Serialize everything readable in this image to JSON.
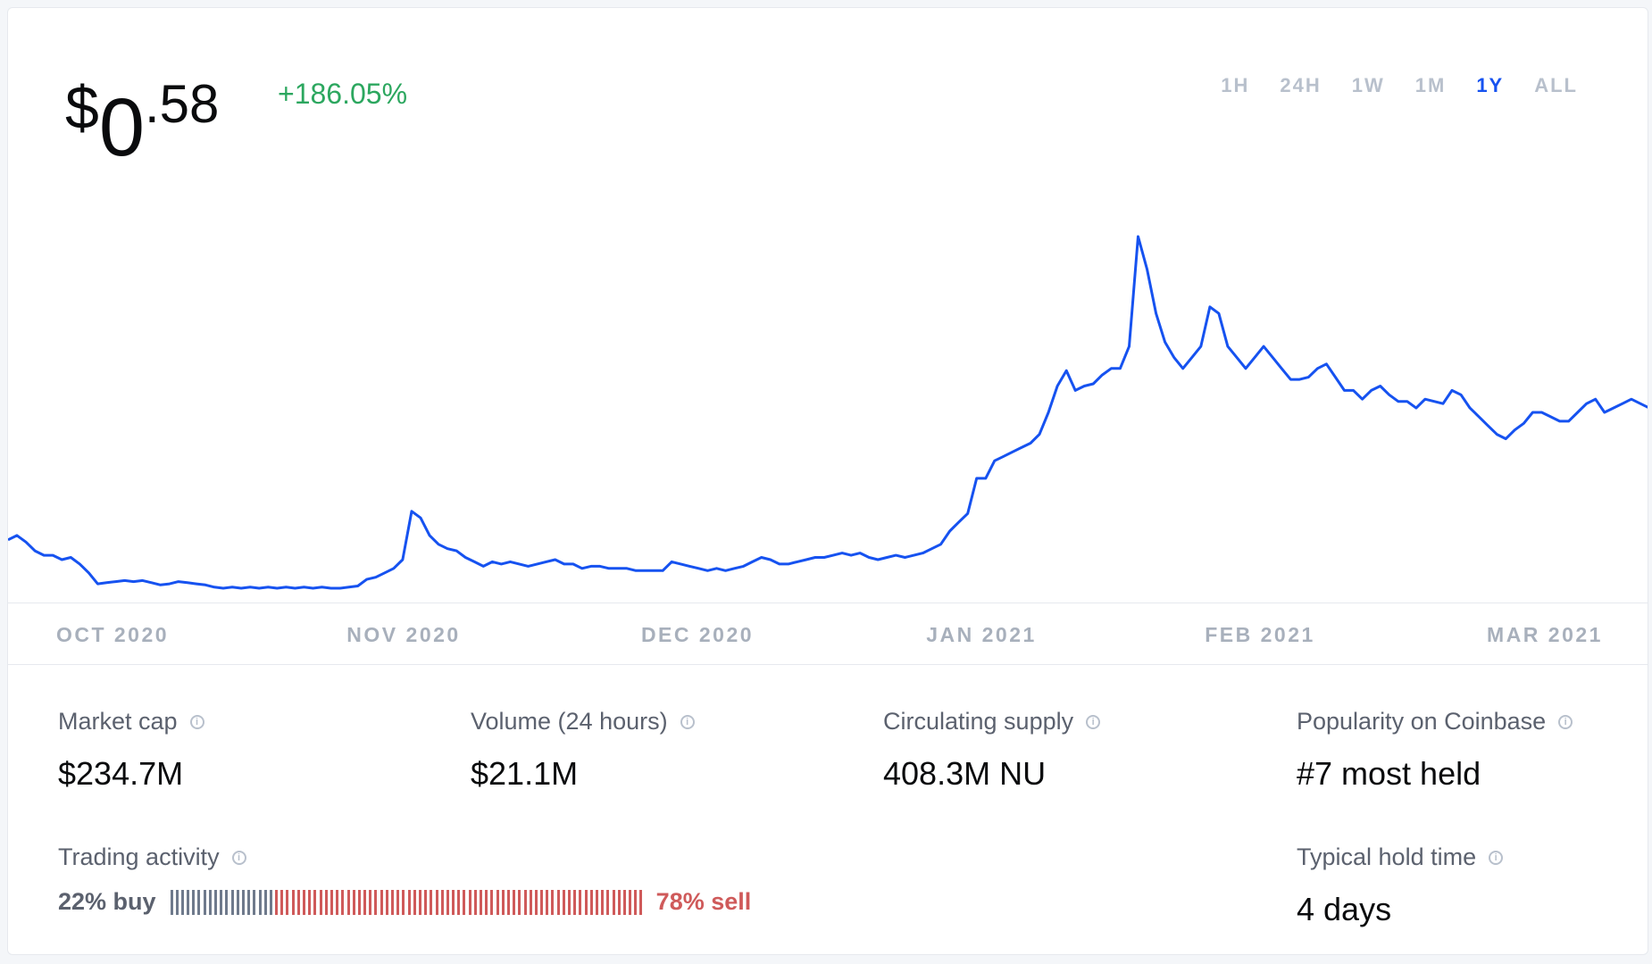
{
  "price": {
    "currency": "$",
    "integer": "0",
    "decimal": ".58"
  },
  "change_percent": "+186.05%",
  "colors": {
    "line": "#1652f0",
    "positive": "#2ca75f",
    "sell": "#cf5a5a",
    "buy": "#6f7a8c",
    "active": "#1652f0"
  },
  "time_ranges": [
    {
      "label": "1H",
      "active": false
    },
    {
      "label": "24H",
      "active": false
    },
    {
      "label": "1W",
      "active": false
    },
    {
      "label": "1M",
      "active": false
    },
    {
      "label": "1Y",
      "active": true
    },
    {
      "label": "ALL",
      "active": false
    }
  ],
  "chart_data": {
    "type": "line",
    "x_labels": [
      "OCT 2020",
      "NOV 2020",
      "DEC 2020",
      "JAN 2021",
      "FEB 2021",
      "MAR 2021"
    ],
    "values": [
      0.22,
      0.24,
      0.21,
      0.17,
      0.15,
      0.15,
      0.13,
      0.14,
      0.11,
      0.07,
      0.02,
      0.025,
      0.03,
      0.035,
      0.03,
      0.035,
      0.025,
      0.015,
      0.02,
      0.03,
      0.025,
      0.02,
      0.015,
      0.005,
      0,
      0.005,
      0,
      0.005,
      0,
      0.005,
      0,
      0.005,
      0,
      0.005,
      0,
      0.005,
      0,
      0,
      0.005,
      0.01,
      0.04,
      0.05,
      0.07,
      0.09,
      0.13,
      0.35,
      0.32,
      0.24,
      0.2,
      0.18,
      0.17,
      0.14,
      0.12,
      0.1,
      0.12,
      0.11,
      0.12,
      0.11,
      0.1,
      0.11,
      0.12,
      0.13,
      0.11,
      0.11,
      0.09,
      0.1,
      0.1,
      0.09,
      0.09,
      0.09,
      0.08,
      0.08,
      0.08,
      0.08,
      0.12,
      0.11,
      0.1,
      0.09,
      0.08,
      0.09,
      0.08,
      0.09,
      0.1,
      0.12,
      0.14,
      0.13,
      0.11,
      0.11,
      0.12,
      0.13,
      0.14,
      0.14,
      0.15,
      0.16,
      0.15,
      0.16,
      0.14,
      0.13,
      0.14,
      0.15,
      0.14,
      0.15,
      0.16,
      0.18,
      0.2,
      0.26,
      0.3,
      0.34,
      0.5,
      0.5,
      0.58,
      0.6,
      0.62,
      0.64,
      0.66,
      0.7,
      0.8,
      0.92,
      0.99,
      0.9,
      0.92,
      0.93,
      0.97,
      1.0,
      1.0,
      1.1,
      1.6,
      1.45,
      1.25,
      1.12,
      1.05,
      1.0,
      1.05,
      1.1,
      1.28,
      1.25,
      1.1,
      1.05,
      1.0,
      1.05,
      1.1,
      1.05,
      1.0,
      0.95,
      0.95,
      0.96,
      1.0,
      1.02,
      0.96,
      0.9,
      0.9,
      0.86,
      0.9,
      0.92,
      0.88,
      0.85,
      0.85,
      0.82,
      0.86,
      0.85,
      0.84,
      0.9,
      0.88,
      0.82,
      0.78,
      0.74,
      0.7,
      0.68,
      0.72,
      0.75,
      0.8,
      0.8,
      0.78,
      0.76,
      0.76,
      0.8,
      0.84,
      0.86,
      0.8,
      0.82,
      0.84,
      0.86,
      0.84,
      0.82
    ],
    "title": "",
    "xlabel": "",
    "ylabel": ""
  },
  "stats": {
    "market_cap": {
      "label": "Market cap",
      "value": "$234.7M"
    },
    "volume": {
      "label": "Volume (24 hours)",
      "value": "$21.1M"
    },
    "supply": {
      "label": "Circulating supply",
      "value": "408.3M NU"
    },
    "popularity": {
      "label": "Popularity on Coinbase",
      "value": "#7 most held"
    },
    "hold_time": {
      "label": "Typical hold time",
      "value": "4 days"
    }
  },
  "trading": {
    "label": "Trading activity",
    "buy_label": "22% buy",
    "sell_label": "78% sell",
    "buy_percent": 22
  },
  "info_glyph": "i"
}
